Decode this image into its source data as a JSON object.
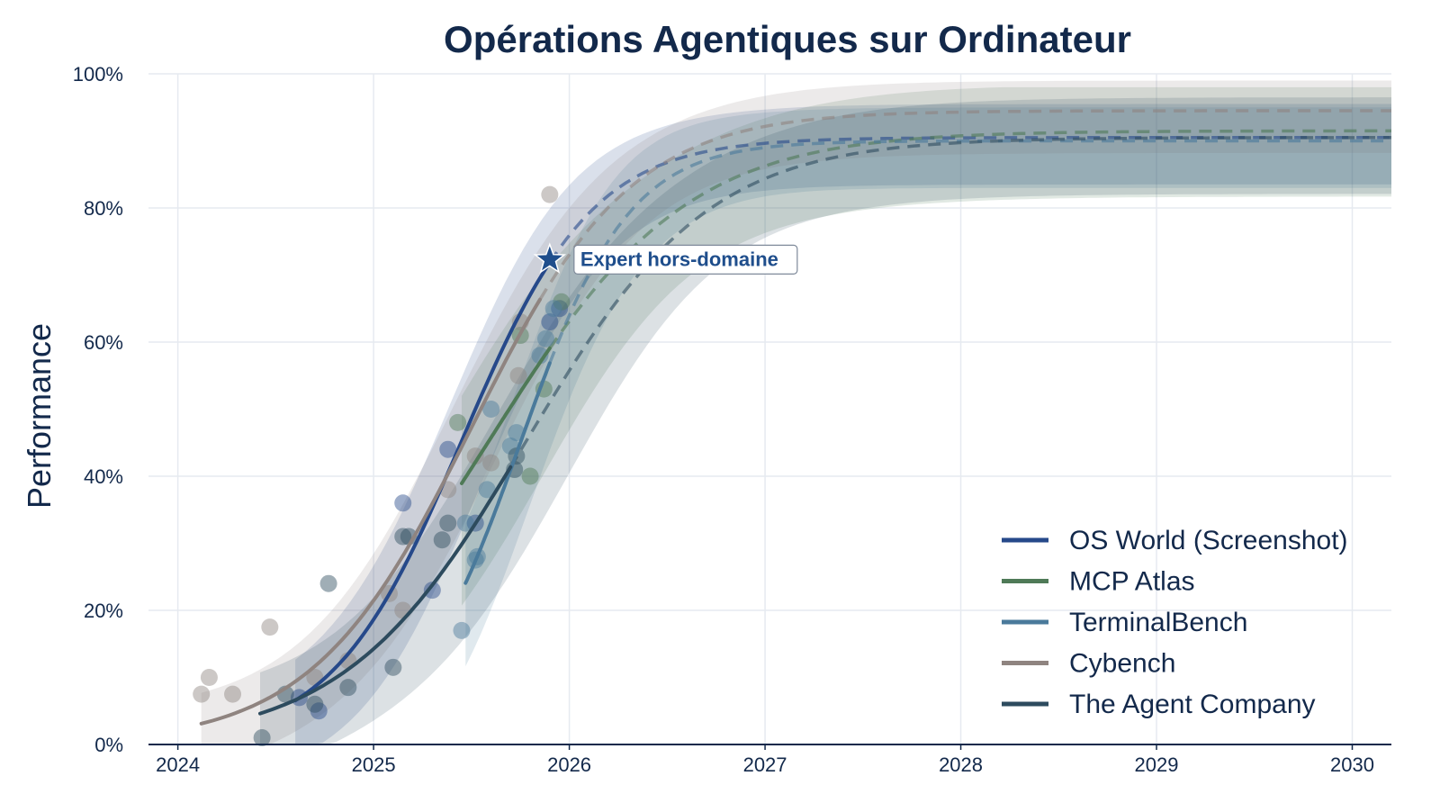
{
  "chart_data": {
    "type": "line",
    "title": "Opérations Agentiques sur Ordinateur",
    "xlabel": "",
    "ylabel": "Performance",
    "xlim": [
      2023.85,
      2030.2
    ],
    "ylim": [
      0,
      100
    ],
    "x_ticks": [
      2024,
      2025,
      2026,
      2027,
      2028,
      2029,
      2030
    ],
    "x_tick_labels": [
      "2024",
      "2025",
      "2026",
      "2027",
      "2028",
      "2029",
      "2030"
    ],
    "y_ticks": [
      0,
      20,
      40,
      60,
      80,
      100
    ],
    "y_tick_labels": [
      "0%",
      "20%",
      "40%",
      "60%",
      "80%",
      "100%"
    ],
    "grid": true,
    "legend_position": "bottom-right",
    "annotation": {
      "label": "Expert hors-domaine",
      "x": 2025.9,
      "y": 72.3,
      "color": "#1f4e8c"
    },
    "series": [
      {
        "name": "OS World (Screenshot)",
        "color": "#26498a",
        "fit": {
          "L": 90.5,
          "k": 3.0,
          "x0": 2025.45,
          "x_start": 2024.6,
          "x_end": 2025.9
        },
        "band_halfwidth": 5,
        "band_top_cap": 97.5,
        "points": [
          [
            2024.62,
            7
          ],
          [
            2024.72,
            5
          ],
          [
            2025.15,
            36
          ],
          [
            2025.3,
            23
          ],
          [
            2025.38,
            44
          ],
          [
            2025.52,
            33
          ],
          [
            2025.9,
            63
          ],
          [
            2025.95,
            65
          ]
        ]
      },
      {
        "name": "MCP Atlas",
        "color": "#4f7a57",
        "fit": {
          "L": 91.5,
          "k": 2.0,
          "x0": 2025.6,
          "x_start": 2025.45,
          "x_end": 2025.9
        },
        "band_halfwidth": 7,
        "band_top_cap": 98,
        "points": [
          [
            2025.43,
            48
          ],
          [
            2025.75,
            61
          ],
          [
            2025.8,
            40
          ],
          [
            2025.87,
            53
          ],
          [
            2025.96,
            66
          ]
        ]
      },
      {
        "name": "TerminalBench",
        "color": "#4a7a9b",
        "fit": {
          "L": 90,
          "k": 3.6,
          "x0": 2025.75,
          "x_start": 2025.47,
          "x_end": 2025.9
        },
        "band_halfwidth": 5,
        "band_top_cap": 97,
        "points": [
          [
            2025.45,
            17
          ],
          [
            2025.47,
            33
          ],
          [
            2025.52,
            27.5
          ],
          [
            2025.53,
            28
          ],
          [
            2025.58,
            38
          ],
          [
            2025.6,
            50
          ],
          [
            2025.7,
            44.5
          ],
          [
            2025.73,
            46.5
          ],
          [
            2025.85,
            58
          ],
          [
            2025.88,
            60.5
          ],
          [
            2025.92,
            65
          ]
        ]
      },
      {
        "name": "Cybench",
        "color": "#8f8480",
        "fit": {
          "L": 94.5,
          "k": 2.45,
          "x0": 2025.5,
          "x_start": 2024.12,
          "x_end": 2025.85
        },
        "band_halfwidth": 4.5,
        "band_top_cap": 99,
        "points": [
          [
            2024.12,
            7.5
          ],
          [
            2024.16,
            10
          ],
          [
            2024.28,
            7.5
          ],
          [
            2024.47,
            17.5
          ],
          [
            2024.7,
            10
          ],
          [
            2024.87,
            12.5
          ],
          [
            2025.08,
            22.5
          ],
          [
            2025.15,
            20
          ],
          [
            2025.38,
            38
          ],
          [
            2025.52,
            43
          ],
          [
            2025.6,
            42
          ],
          [
            2025.74,
            55
          ],
          [
            2025.75,
            63
          ],
          [
            2025.9,
            82
          ]
        ]
      },
      {
        "name": "The Agent Company",
        "color": "#2d4b5e",
        "fit": {
          "L": 90.5,
          "k": 2.15,
          "x0": 2025.78,
          "x_start": 2024.42,
          "x_end": 2025.7
        },
        "band_halfwidth": 6,
        "band_top_cap": 97,
        "points": [
          [
            2024.43,
            1
          ],
          [
            2024.55,
            7.5
          ],
          [
            2024.7,
            6
          ],
          [
            2024.77,
            24
          ],
          [
            2024.87,
            8.5
          ],
          [
            2025.1,
            11.5
          ],
          [
            2025.15,
            31
          ],
          [
            2025.18,
            31
          ],
          [
            2025.35,
            30.5
          ],
          [
            2025.38,
            33
          ],
          [
            2025.72,
            41
          ],
          [
            2025.73,
            43
          ]
        ]
      }
    ]
  }
}
